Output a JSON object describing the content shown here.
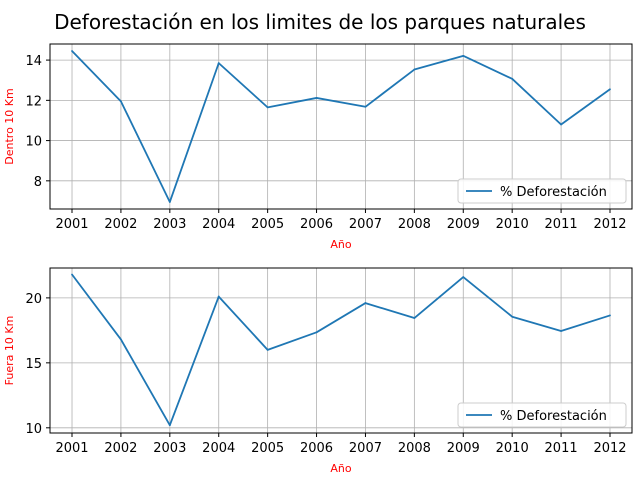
{
  "chart_data": {
    "title": "Deforestación en los limites de los parques naturales",
    "panels": [
      {
        "type": "line",
        "xlabel": "Año",
        "ylabel": "Dentro 10 Km",
        "x": [
          2001,
          2002,
          2003,
          2004,
          2005,
          2006,
          2007,
          2008,
          2009,
          2010,
          2011,
          2012
        ],
        "ylim": [
          6.6,
          14.8
        ],
        "yticks": [
          8,
          10,
          12,
          14
        ],
        "grid": true,
        "legend_position": "lower-right",
        "series": [
          {
            "name": "% Deforestación",
            "color": "#1f77b4",
            "values": [
              14.45,
              11.95,
              6.95,
              13.85,
              11.65,
              12.12,
              11.68,
              13.53,
              14.21,
              13.07,
              10.8,
              12.55
            ]
          }
        ]
      },
      {
        "type": "line",
        "xlabel": "Año",
        "ylabel": "Fuera 10 Km",
        "x": [
          2001,
          2002,
          2003,
          2004,
          2005,
          2006,
          2007,
          2008,
          2009,
          2010,
          2011,
          2012
        ],
        "ylim": [
          9.6,
          22.3
        ],
        "yticks": [
          10,
          15,
          20
        ],
        "grid": true,
        "legend_position": "lower-right",
        "series": [
          {
            "name": "% Deforestación",
            "color": "#1f77b4",
            "values": [
              21.8,
              16.8,
              10.2,
              20.1,
              16.0,
              17.35,
              19.6,
              18.45,
              21.6,
              18.55,
              17.45,
              18.65
            ]
          }
        ]
      }
    ]
  }
}
